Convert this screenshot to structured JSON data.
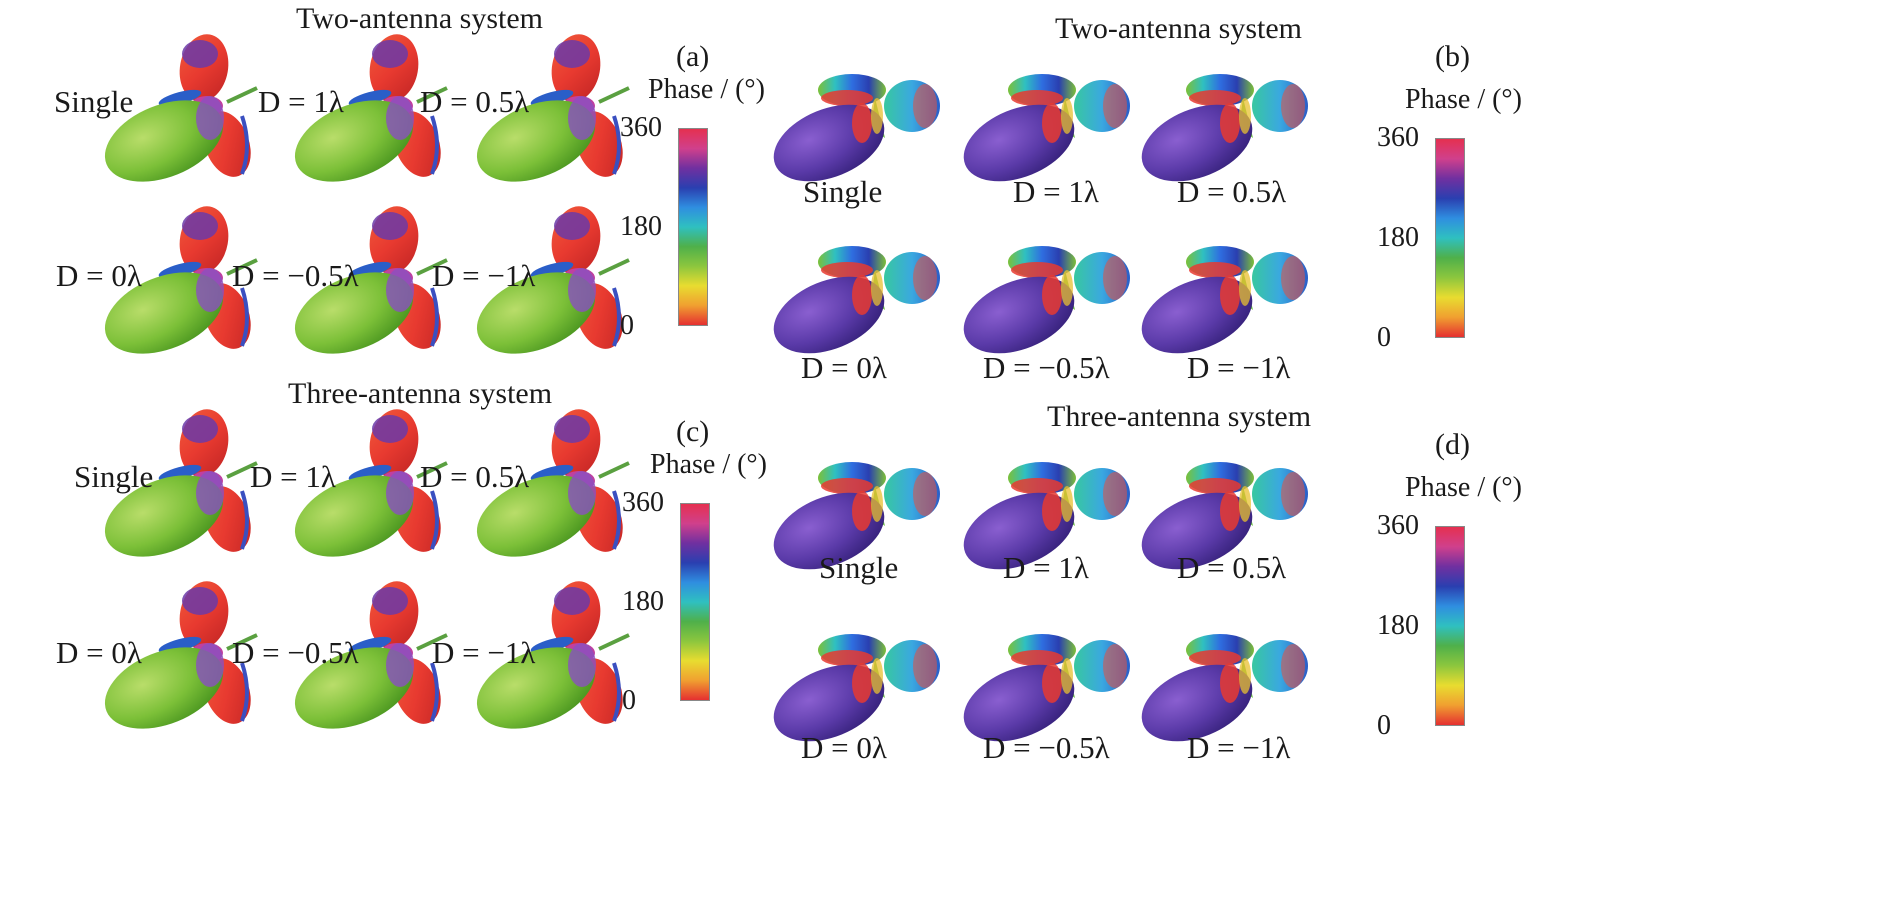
{
  "figure": {
    "left": {
      "groups": [
        {
          "title": "Two-antenna system",
          "letter": "(a)",
          "labels": [
            "Single",
            "D = 1λ",
            "D = 0.5λ",
            "D = 0λ",
            "D = −0.5λ",
            "D = −1λ"
          ],
          "colorbar": {
            "title": "Phase / (°)",
            "ticks": [
              "360",
              "180",
              "0"
            ]
          }
        },
        {
          "title": "Three-antenna system",
          "letter": "(c)",
          "labels": [
            "Single",
            "D = 1λ",
            "D = 0.5λ",
            "D = 0λ",
            "D = −0.5λ",
            "D = −1λ"
          ],
          "colorbar": {
            "title": "Phase / (°)",
            "ticks": [
              "360",
              "180",
              "0"
            ]
          }
        }
      ]
    },
    "right": {
      "groups": [
        {
          "title": "Two-antenna system",
          "letter": "(b)",
          "labels": [
            "Single",
            "D = 1λ",
            "D = 0.5λ",
            "D = 0λ",
            "D = −0.5λ",
            "D = −1λ"
          ],
          "colorbar": {
            "title": "Phase / (°)",
            "ticks": [
              "360",
              "180",
              "0"
            ]
          }
        },
        {
          "title": "Three-antenna system",
          "letter": "(d)",
          "labels": [
            "Single",
            "D = 1λ",
            "D = 0.5λ",
            "D = 0λ",
            "D = −0.5λ",
            "D = −1λ"
          ],
          "colorbar": {
            "title": "Phase / (°)",
            "ticks": [
              "360",
              "180",
              "0"
            ]
          }
        }
      ]
    },
    "colormap": [
      "#e53030",
      "#f0a030",
      "#e8dc30",
      "#8cc63e",
      "#4fb04a",
      "#2fc0c0",
      "#2f8ee0",
      "#2a3fb0",
      "#7030a0",
      "#d0408c",
      "#e53050"
    ]
  }
}
